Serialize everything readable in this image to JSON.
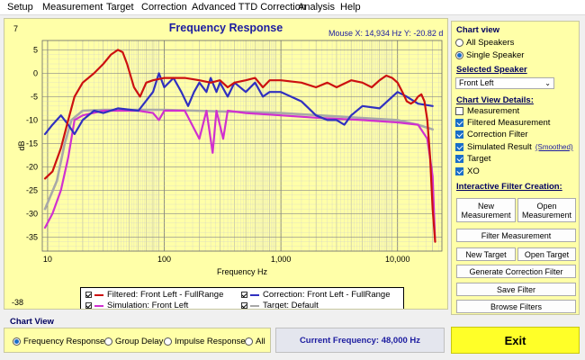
{
  "menu": [
    "Setup",
    "Measurement",
    "Target",
    "Correction",
    "Advanced TTD Correction",
    "Analysis",
    "Help"
  ],
  "chart": {
    "title": "Frequency Response",
    "mouse_readout": "Mouse X: 14,934 Hz   Y: -20.82 d",
    "top_left_value": "7",
    "bottom_left_value": "-38"
  },
  "chart_data": {
    "type": "line",
    "title": "Frequency Response",
    "xlabel": "Frequency Hz",
    "ylabel": "dB",
    "x_scale": "log",
    "xlim": [
      9,
      24000
    ],
    "ylim": [
      -38,
      7
    ],
    "x_ticks": [
      10,
      100,
      1000,
      10000
    ],
    "x_tick_labels": [
      "10",
      "100",
      "1,000",
      "10,000"
    ],
    "y_ticks": [
      5,
      0,
      -5,
      -10,
      -15,
      -20,
      -25,
      -30,
      -35
    ],
    "grid": true,
    "legend_position": "bottom",
    "series": [
      {
        "name": "Filtered: Front Left - FullRange",
        "color": "#cc1010",
        "points": [
          [
            9.5,
            -22.5
          ],
          [
            11,
            -21
          ],
          [
            13,
            -16
          ],
          [
            15,
            -10
          ],
          [
            17,
            -5
          ],
          [
            20,
            -2
          ],
          [
            25,
            0
          ],
          [
            30,
            2
          ],
          [
            35,
            4
          ],
          [
            40,
            5
          ],
          [
            44,
            4.5
          ],
          [
            48,
            2
          ],
          [
            55,
            -3
          ],
          [
            62,
            -5
          ],
          [
            70,
            -2
          ],
          [
            80,
            -1.5
          ],
          [
            100,
            -1
          ],
          [
            150,
            -1
          ],
          [
            200,
            -1.5
          ],
          [
            250,
            -2
          ],
          [
            300,
            -1.5
          ],
          [
            350,
            -3
          ],
          [
            400,
            -2
          ],
          [
            500,
            -1.5
          ],
          [
            600,
            -1
          ],
          [
            700,
            -3
          ],
          [
            800,
            -1.5
          ],
          [
            1000,
            -1.5
          ],
          [
            1500,
            -2
          ],
          [
            2000,
            -3
          ],
          [
            2500,
            -2
          ],
          [
            3000,
            -3
          ],
          [
            4000,
            -1.5
          ],
          [
            5000,
            -2
          ],
          [
            6000,
            -3
          ],
          [
            7000,
            -1.5
          ],
          [
            8000,
            -0.5
          ],
          [
            9000,
            -1
          ],
          [
            10000,
            -2
          ],
          [
            11000,
            -4
          ],
          [
            12000,
            -6
          ],
          [
            13000,
            -6.5
          ],
          [
            14000,
            -6
          ],
          [
            15000,
            -5
          ],
          [
            16000,
            -4.5
          ],
          [
            17000,
            -6
          ],
          [
            18000,
            -10
          ],
          [
            19000,
            -18
          ],
          [
            20000,
            -29
          ],
          [
            21000,
            -36
          ]
        ]
      },
      {
        "name": "Correction: Front Left - FullRange",
        "color": "#3030c0",
        "points": [
          [
            9.5,
            -13
          ],
          [
            11,
            -11
          ],
          [
            13,
            -9
          ],
          [
            15,
            -11
          ],
          [
            17,
            -13
          ],
          [
            20,
            -10
          ],
          [
            25,
            -8
          ],
          [
            30,
            -8.5
          ],
          [
            40,
            -7.5
          ],
          [
            60,
            -8
          ],
          [
            80,
            -4
          ],
          [
            90,
            0
          ],
          [
            100,
            -3
          ],
          [
            120,
            -1
          ],
          [
            140,
            -4
          ],
          [
            160,
            -7
          ],
          [
            180,
            -4
          ],
          [
            200,
            -2
          ],
          [
            230,
            -4
          ],
          [
            250,
            -1
          ],
          [
            280,
            -4
          ],
          [
            300,
            -2
          ],
          [
            350,
            -5
          ],
          [
            400,
            -2
          ],
          [
            500,
            -4
          ],
          [
            600,
            -2
          ],
          [
            700,
            -5
          ],
          [
            800,
            -4
          ],
          [
            1000,
            -4
          ],
          [
            1500,
            -6
          ],
          [
            2000,
            -9
          ],
          [
            2500,
            -10
          ],
          [
            3000,
            -10
          ],
          [
            3500,
            -11
          ],
          [
            4000,
            -9
          ],
          [
            5000,
            -7
          ],
          [
            7000,
            -7.5
          ],
          [
            10000,
            -4
          ],
          [
            12000,
            -5
          ],
          [
            15000,
            -6.5
          ],
          [
            20000,
            -7
          ]
        ]
      },
      {
        "name": "Simulation: Front Left",
        "color": "#d030d0",
        "points": [
          [
            9.5,
            -33
          ],
          [
            11,
            -30
          ],
          [
            13,
            -25
          ],
          [
            15,
            -18
          ],
          [
            17,
            -10
          ],
          [
            20,
            -9
          ],
          [
            30,
            -8
          ],
          [
            60,
            -8
          ],
          [
            80,
            -8.5
          ],
          [
            90,
            -10
          ],
          [
            100,
            -8
          ],
          [
            150,
            -8
          ],
          [
            200,
            -14
          ],
          [
            230,
            -8
          ],
          [
            260,
            -17
          ],
          [
            280,
            -8
          ],
          [
            320,
            -14
          ],
          [
            350,
            -8
          ],
          [
            500,
            -8.5
          ],
          [
            1000,
            -9
          ],
          [
            2000,
            -9.5
          ],
          [
            5000,
            -10
          ],
          [
            10000,
            -10.5
          ],
          [
            15000,
            -11
          ],
          [
            18000,
            -14
          ],
          [
            20000,
            -22
          ],
          [
            21000,
            -36
          ]
        ]
      },
      {
        "name": "Target: Default",
        "color": "#a8a8a8",
        "points": [
          [
            9.5,
            -29
          ],
          [
            12,
            -23
          ],
          [
            14,
            -15
          ],
          [
            16,
            -10
          ],
          [
            20,
            -8
          ],
          [
            30,
            -7.8
          ],
          [
            100,
            -7.8
          ],
          [
            1000,
            -8.5
          ],
          [
            10000,
            -10
          ],
          [
            15000,
            -11
          ],
          [
            20000,
            -12
          ]
        ]
      }
    ]
  },
  "legend": [
    {
      "label": "Filtered: Front Left - FullRange",
      "color": "#cc1010"
    },
    {
      "label": "Correction: Front Left - FullRange",
      "color": "#3030c0"
    },
    {
      "label": "Simulation: Front Left",
      "color": "#d030d0"
    },
    {
      "label": "Target: Default",
      "color": "#a8a8a8"
    }
  ],
  "side": {
    "chart_view_title": "Chart view",
    "all_speakers": "All Speakers",
    "single_speaker": "Single Speaker",
    "selected_speaker_title": "Selected Speaker",
    "speaker_value": "Front Left",
    "details_title": "Chart View Details:",
    "checks": [
      {
        "label": "Measurement",
        "checked": false
      },
      {
        "label": "Filtered Measurement",
        "checked": true
      },
      {
        "label": "Correction Filter",
        "checked": true
      },
      {
        "label": "Simulated Result",
        "checked": true
      },
      {
        "label": "Target",
        "checked": true
      },
      {
        "label": "XO",
        "checked": true
      }
    ],
    "smoothed_link": "(Smoothed)",
    "filter_creation_title": "Interactive Filter Creation:",
    "new_measurement": "New Measurement",
    "open_measurement": "Open Measurement",
    "filter_measurement": "Filter Measurement",
    "new_target": "New Target",
    "open_target": "Open Target",
    "generate_correction": "Generate Correction Filter",
    "save_filter": "Save Filter",
    "browse_filters": "Browse Filters"
  },
  "bottom": {
    "chart_view_label": "Chart View",
    "views": [
      "Frequency Response",
      "Group Delay",
      "Impulse Response",
      "All"
    ],
    "selected_view": "Frequency Response",
    "current_frequency": "Current Frequency: 48,000 Hz",
    "exit": "Exit"
  }
}
